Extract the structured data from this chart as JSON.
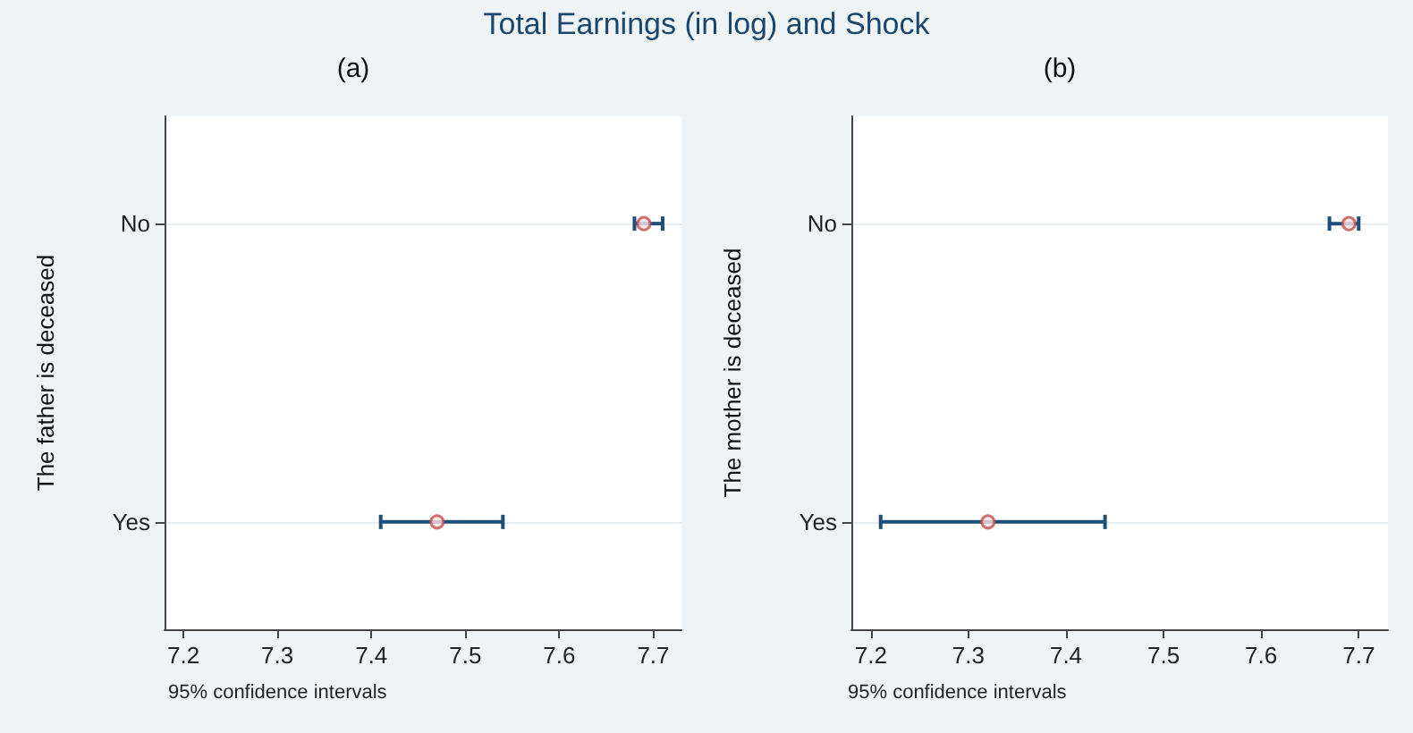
{
  "chart_data": [
    {
      "type": "scatter",
      "title": "Total Earnings (in log) and Shock",
      "subtitle": "(a)",
      "xlabel": "95% confidence intervals",
      "ylabel": "The father is deceased",
      "categories": [
        "No",
        "Yes"
      ],
      "orientation": "horizontal",
      "series": [
        {
          "color": "#c0504d",
          "values": [
            7.69,
            7.47
          ],
          "errors": [
            [
              7.68,
              7.71
            ],
            [
              7.41,
              7.54
            ]
          ]
        }
      ],
      "xlim": [
        7.18,
        7.73
      ],
      "xticks": [
        7.2,
        7.3,
        7.4,
        7.5,
        7.6,
        7.7
      ],
      "grid": "y",
      "marker": "circle"
    },
    {
      "type": "scatter",
      "subtitle": "(b)",
      "xlabel": "95% confidence intervals",
      "ylabel": "The mother is deceased",
      "categories": [
        "No",
        "Yes"
      ],
      "orientation": "horizontal",
      "series": [
        {
          "color": "#c0504d",
          "values": [
            7.69,
            7.32
          ],
          "errors": [
            [
              7.67,
              7.7
            ],
            [
              7.21,
              7.44
            ]
          ]
        }
      ],
      "xlim": [
        7.18,
        7.73
      ],
      "xticks": [
        7.2,
        7.3,
        7.4,
        7.5,
        7.6,
        7.7
      ],
      "grid": "y",
      "marker": "circle"
    }
  ]
}
